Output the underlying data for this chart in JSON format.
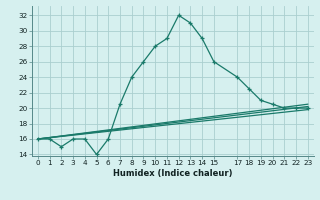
{
  "title": "",
  "xlabel": "Humidex (Indice chaleur)",
  "bg_color": "#d6f0ef",
  "grid_color": "#aacfcf",
  "line_color": "#1a7a6a",
  "xlim": [
    -0.5,
    23.5
  ],
  "ylim": [
    13.8,
    33.2
  ],
  "xticks": [
    0,
    1,
    2,
    3,
    4,
    5,
    6,
    7,
    8,
    9,
    10,
    11,
    12,
    13,
    14,
    15,
    17,
    18,
    19,
    20,
    21,
    22,
    23
  ],
  "yticks": [
    14,
    16,
    18,
    20,
    22,
    24,
    26,
    28,
    30,
    32
  ],
  "curve1_x": [
    0,
    1,
    2,
    3,
    4,
    5,
    6,
    7,
    8,
    9,
    10,
    11,
    12,
    13,
    14,
    15,
    17,
    18,
    19,
    20,
    21,
    22,
    23
  ],
  "curve1_y": [
    16,
    16,
    15,
    16,
    16,
    14,
    16,
    20.5,
    24,
    26,
    28,
    29,
    32,
    31,
    29,
    26,
    24,
    22.5,
    21,
    20.5,
    20,
    20,
    20
  ],
  "curve2_x": [
    0,
    23
  ],
  "curve2_y": [
    16,
    20.2
  ],
  "curve3_x": [
    0,
    23
  ],
  "curve3_y": [
    16,
    20.5
  ],
  "curve4_x": [
    0,
    23
  ],
  "curve4_y": [
    16,
    19.8
  ],
  "xlabel_fontsize": 6.0,
  "tick_fontsize": 5.2
}
